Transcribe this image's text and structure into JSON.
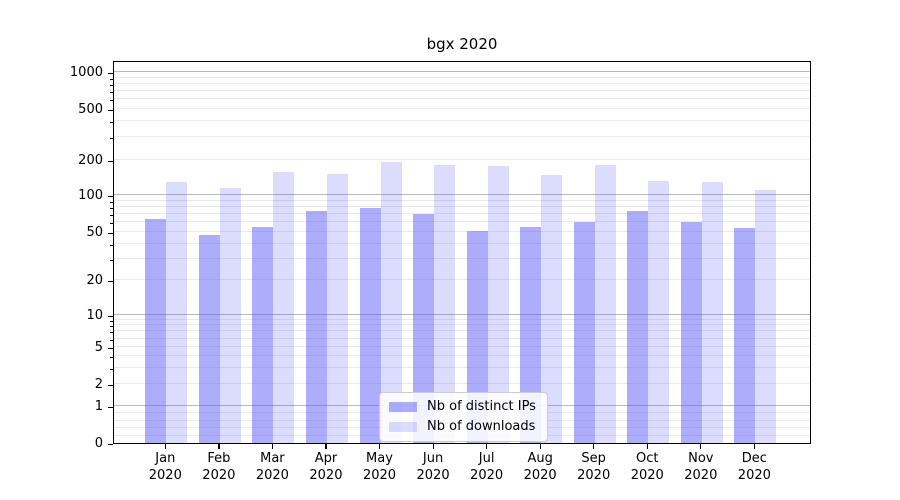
{
  "title": "bgx 2020",
  "colors": {
    "series_dark": "rgba(80,80,248,0.47)",
    "series_light": "rgba(80,80,248,0.20)",
    "grid_major": "#b9b9b9",
    "grid_minor": "#e9e9e9",
    "spine": "#000000"
  },
  "chart_data": {
    "type": "bar",
    "title": "bgx 2020",
    "categories": [
      "Jan",
      "Feb",
      "Mar",
      "Apr",
      "May",
      "Jun",
      "Jul",
      "Aug",
      "Sep",
      "Oct",
      "Nov",
      "Dec"
    ],
    "year_label": "2020",
    "series": [
      {
        "name": "Nb of distinct IPs",
        "color": "rgba(80,80,248,0.47)",
        "values": [
          64,
          47,
          55,
          74,
          78,
          70,
          51,
          55,
          60,
          74,
          60,
          54
        ]
      },
      {
        "name": "Nb of downloads",
        "color": "rgba(80,80,248,0.20)",
        "values": [
          130,
          115,
          158,
          151,
          192,
          181,
          178,
          149,
          181,
          131,
          130,
          110
        ]
      }
    ],
    "xlabel": "",
    "ylabel": "",
    "yscale": "symlog",
    "ylim": [
      0,
      1250
    ],
    "yticks": [
      0,
      1,
      2,
      5,
      10,
      20,
      50,
      100,
      200,
      500,
      1000
    ],
    "ytick_labels": [
      "0",
      "1",
      "2",
      "5",
      "10",
      "20",
      "50",
      "100",
      "200",
      "500",
      "1000"
    ],
    "grid": true,
    "legend_position": "lower-center-inside"
  }
}
